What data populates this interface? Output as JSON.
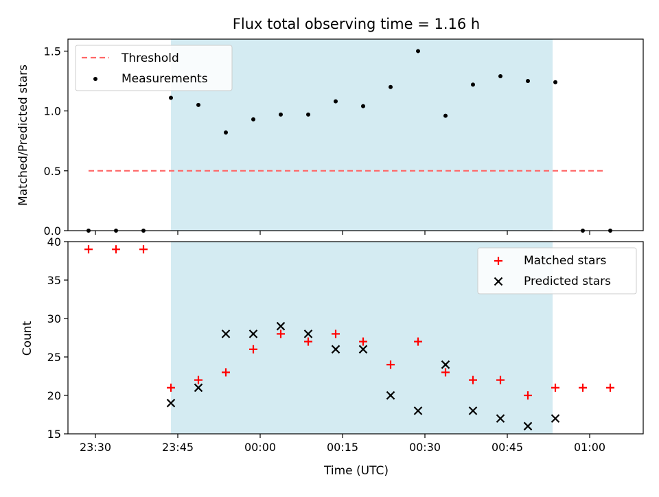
{
  "title": "Flux total observing time = 1.16 h",
  "colors": {
    "shade": "#add8e6",
    "threshold": "#ff6666",
    "matched": "#ff0000",
    "predicted": "#000000",
    "measure": "#000000"
  },
  "chart_data": [
    {
      "type": "scatter",
      "ylabel": "Matched/Predicted stars",
      "xlabel": "",
      "ylim": [
        0,
        1.6
      ],
      "yticks": [
        "0.0",
        "0.5",
        "1.0",
        "1.5"
      ],
      "shaded_region": {
        "x0": "23:43:45",
        "x1": "00:53:15"
      },
      "threshold": {
        "name": "Threshold",
        "y": 0.5,
        "x0": "23:28:45",
        "x1": "01:03:00"
      },
      "legend": {
        "position": "top-left",
        "entries": [
          "Threshold",
          "Measurements"
        ]
      },
      "series": [
        {
          "name": "Measurements",
          "x": [
            "23:28:45",
            "23:33:45",
            "23:38:45",
            "23:43:45",
            "23:48:45",
            "23:53:45",
            "23:58:45",
            "00:03:45",
            "00:08:45",
            "00:13:45",
            "00:18:45",
            "00:23:45",
            "00:28:45",
            "00:33:45",
            "00:38:45",
            "00:43:45",
            "00:48:45",
            "00:53:45",
            "00:58:45",
            "01:03:45"
          ],
          "y": [
            0,
            0,
            0,
            1.11,
            1.05,
            0.82,
            0.93,
            0.97,
            0.97,
            1.08,
            1.04,
            1.2,
            1.5,
            0.96,
            1.22,
            1.29,
            1.25,
            1.24,
            0,
            0
          ]
        }
      ]
    },
    {
      "type": "scatter",
      "ylabel": "Count",
      "xlabel": "Time (UTC)",
      "ylim": [
        15,
        40
      ],
      "yticks": [
        "15",
        "20",
        "25",
        "30",
        "35",
        "40"
      ],
      "xticks": [
        "23:30",
        "23:45",
        "00:00",
        "00:15",
        "00:30",
        "00:45",
        "01:00"
      ],
      "legend": {
        "position": "top-right",
        "entries": [
          "Matched stars",
          "Predicted stars"
        ]
      },
      "series": [
        {
          "name": "Matched stars",
          "x": [
            "23:28:45",
            "23:33:45",
            "23:38:45",
            "23:43:45",
            "23:48:45",
            "23:53:45",
            "23:58:45",
            "00:03:45",
            "00:08:45",
            "00:13:45",
            "00:18:45",
            "00:23:45",
            "00:28:45",
            "00:33:45",
            "00:38:45",
            "00:43:45",
            "00:48:45",
            "00:53:45",
            "00:58:45",
            "01:03:45"
          ],
          "y": [
            39,
            39,
            39,
            21,
            22,
            23,
            26,
            28,
            27,
            28,
            27,
            24,
            27,
            23,
            22,
            22,
            20,
            21,
            21,
            21
          ]
        },
        {
          "name": "Predicted stars",
          "x": [
            "23:43:45",
            "23:48:45",
            "23:53:45",
            "23:58:45",
            "00:03:45",
            "00:08:45",
            "00:13:45",
            "00:18:45",
            "00:23:45",
            "00:28:45",
            "00:33:45",
            "00:38:45",
            "00:43:45",
            "00:48:45",
            "00:53:45"
          ],
          "y": [
            19,
            21,
            28,
            28,
            29,
            28,
            26,
            26,
            20,
            18,
            24,
            18,
            17,
            16,
            17
          ]
        }
      ]
    }
  ]
}
